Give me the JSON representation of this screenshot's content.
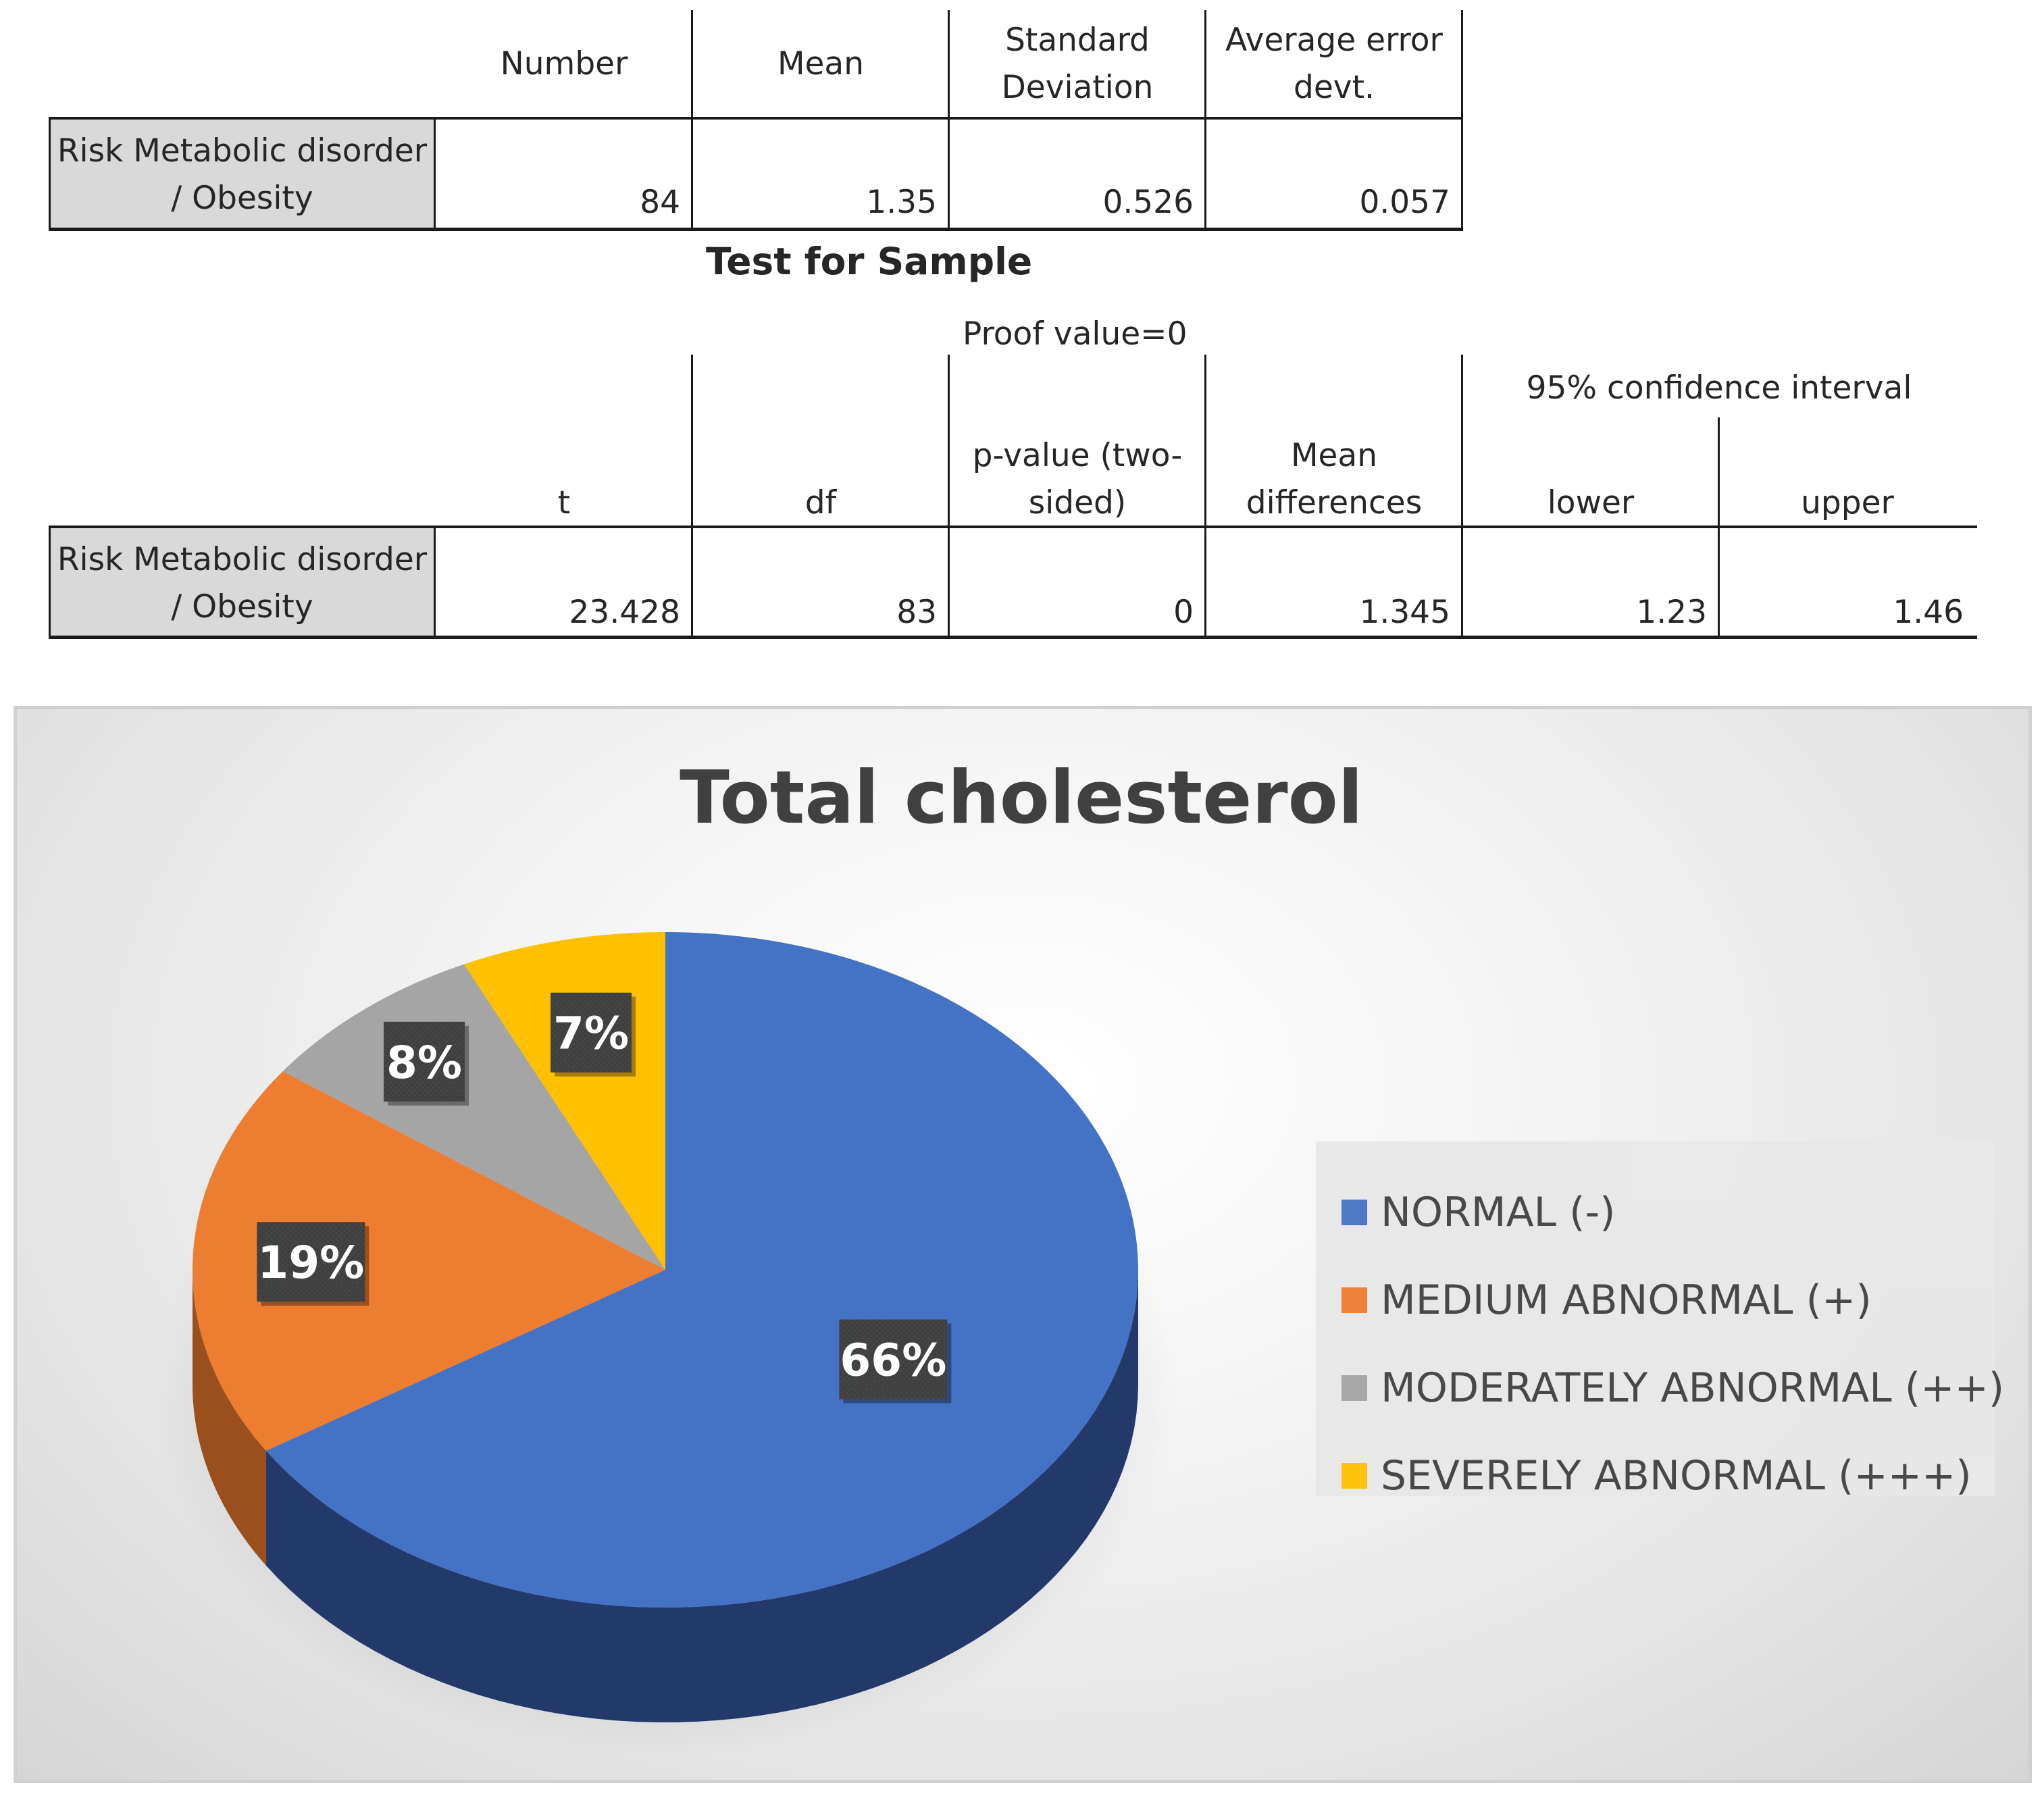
{
  "table1": {
    "headers": [
      "Number",
      "Mean",
      "Standard Deviation",
      "Average error devt."
    ],
    "row_label": "Risk Metabolic disorder / Obesity",
    "values": [
      "84",
      "1.35",
      "0.526",
      "0.057"
    ]
  },
  "table2": {
    "title": "Test for Sample",
    "proof_value": "Proof value=0",
    "ci_header": "95% confidence interval",
    "headers": [
      "t",
      "df",
      "p-value (two-sided)",
      "Mean differences",
      "lower",
      "upper"
    ],
    "row_label": "Risk Metabolic disorder / Obesity",
    "values": [
      "23.428",
      "83",
      "0",
      "1.345",
      "1.23",
      "1.46"
    ]
  },
  "chart_data": {
    "type": "pie",
    "title": "Total cholesterol",
    "categories": [
      "NORMAL (-)",
      "MEDIUM ABNORMAL (+)",
      "MODERATELY ABNORMAL (++)",
      "SEVERELY ABNORMAL (+++)"
    ],
    "values": [
      66,
      19,
      8,
      7
    ],
    "labels": [
      "66%",
      "19%",
      "8%",
      "7%"
    ],
    "colors": [
      "#4472c4",
      "#ed7d31",
      "#a5a5a5",
      "#ffc000"
    ],
    "legend_position": "right"
  }
}
